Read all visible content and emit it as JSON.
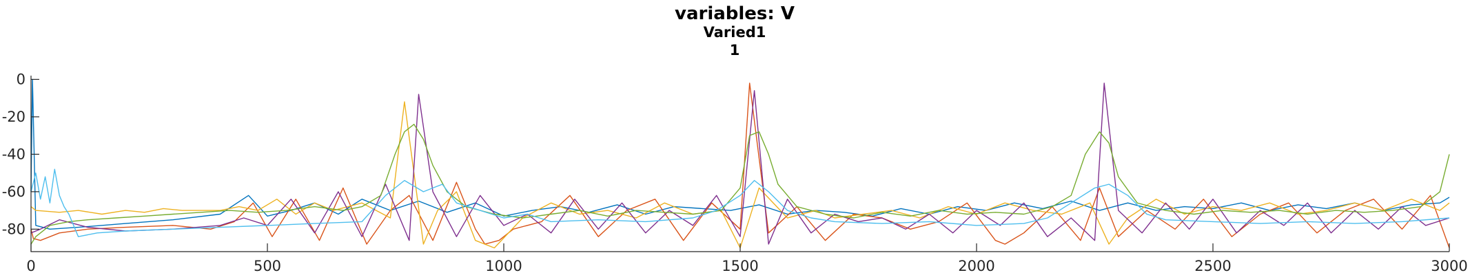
{
  "chart_data": {
    "type": "line",
    "title": "variables: V",
    "subtitle": "Varied1",
    "subtitle2": "1",
    "xlabel": "",
    "ylabel": "",
    "xlim": [
      0,
      3000
    ],
    "ylim": [
      -92,
      2
    ],
    "grid": false,
    "xticks": [
      0,
      500,
      1000,
      1500,
      2000,
      2500,
      3000
    ],
    "yticks": [
      0,
      -20,
      -40,
      -60,
      -80
    ],
    "xtick_labels": [
      "0",
      "500",
      "1000",
      "1500",
      "2000",
      "2500",
      "3000"
    ],
    "ytick_labels": [
      "0",
      "-20",
      "-40",
      "-60",
      "-80"
    ],
    "series": [
      {
        "color": "#0072BD",
        "x": [
          0,
          3,
          10,
          40,
          100,
          200,
          300,
          400,
          460,
          500,
          550,
          600,
          650,
          700,
          760,
          820,
          880,
          940,
          1000,
          1060,
          1120,
          1180,
          1240,
          1300,
          1360,
          1420,
          1480,
          1540,
          1600,
          1660,
          1720,
          1780,
          1840,
          1900,
          1960,
          2020,
          2080,
          2140,
          2200,
          2260,
          2320,
          2380,
          2440,
          2500,
          2560,
          2620,
          2680,
          2740,
          2800,
          2860,
          2920,
          2980,
          3000
        ],
        "y": [
          -60,
          0,
          -78,
          -80,
          -79,
          -77,
          -75,
          -72,
          -62,
          -73,
          -70,
          -66,
          -72,
          -64,
          -70,
          -65,
          -71,
          -66,
          -73,
          -70,
          -68,
          -71,
          -67,
          -72,
          -68,
          -69,
          -70,
          -67,
          -72,
          -70,
          -71,
          -73,
          -69,
          -72,
          -68,
          -70,
          -66,
          -69,
          -65,
          -70,
          -66,
          -70,
          -68,
          -69,
          -66,
          -70,
          -67,
          -69,
          -66,
          -70,
          -67,
          -66,
          -63
        ]
      },
      {
        "color": "#D95319",
        "x": [
          0,
          5,
          20,
          60,
          120,
          200,
          300,
          380,
          430,
          470,
          510,
          560,
          610,
          660,
          710,
          760,
          800,
          850,
          900,
          940,
          960,
          990,
          1020,
          1080,
          1140,
          1200,
          1260,
          1320,
          1380,
          1440,
          1500,
          1520,
          1560,
          1620,
          1680,
          1740,
          1800,
          1860,
          1920,
          1980,
          2040,
          2060,
          2100,
          2160,
          2220,
          2260,
          2300,
          2360,
          2420,
          2480,
          2540,
          2600,
          2660,
          2720,
          2780,
          2840,
          2900,
          2960,
          3000
        ],
        "y": [
          -80,
          -85,
          -86,
          -82,
          -80,
          -79,
          -78,
          -80,
          -76,
          -66,
          -84,
          -64,
          -86,
          -58,
          -88,
          -70,
          -62,
          -86,
          -55,
          -80,
          -88,
          -86,
          -80,
          -76,
          -62,
          -84,
          -70,
          -64,
          -86,
          -66,
          -80,
          -2,
          -82,
          -68,
          -86,
          -72,
          -74,
          -80,
          -76,
          -66,
          -86,
          -88,
          -82,
          -68,
          -86,
          -58,
          -84,
          -70,
          -80,
          -64,
          -84,
          -72,
          -66,
          -82,
          -70,
          -64,
          -80,
          -62,
          -90
        ]
      },
      {
        "color": "#EDB120",
        "x": [
          0,
          10,
          60,
          100,
          150,
          200,
          240,
          280,
          320,
          360,
          400,
          440,
          480,
          520,
          560,
          600,
          640,
          700,
          760,
          790,
          830,
          860,
          900,
          940,
          980,
          1040,
          1100,
          1160,
          1220,
          1280,
          1340,
          1400,
          1460,
          1500,
          1540,
          1600,
          1660,
          1700,
          1760,
          1820,
          1880,
          1940,
          2000,
          2060,
          2120,
          2180,
          2240,
          2280,
          2320,
          2380,
          2440,
          2500,
          2560,
          2620,
          2680,
          2740,
          2800,
          2860,
          2920,
          2980,
          3000
        ],
        "y": [
          -68,
          -70,
          -71,
          -70,
          -72,
          -70,
          -71,
          -69,
          -70,
          -70,
          -70,
          -68,
          -70,
          -64,
          -72,
          -66,
          -70,
          -66,
          -74,
          -12,
          -88,
          -70,
          -60,
          -86,
          -90,
          -74,
          -66,
          -72,
          -70,
          -74,
          -66,
          -72,
          -70,
          -90,
          -58,
          -74,
          -70,
          -74,
          -72,
          -70,
          -74,
          -68,
          -72,
          -66,
          -70,
          -72,
          -66,
          -88,
          -74,
          -64,
          -72,
          -68,
          -70,
          -66,
          -72,
          -70,
          -66,
          -70,
          -64,
          -70,
          -66
        ]
      },
      {
        "color": "#7E2F8E",
        "x": [
          0,
          20,
          60,
          120,
          200,
          300,
          400,
          450,
          500,
          550,
          600,
          650,
          700,
          750,
          800,
          820,
          850,
          900,
          950,
          1000,
          1050,
          1100,
          1150,
          1200,
          1250,
          1300,
          1350,
          1400,
          1450,
          1500,
          1530,
          1560,
          1600,
          1650,
          1700,
          1750,
          1800,
          1850,
          1900,
          1950,
          2000,
          2050,
          2100,
          2150,
          2200,
          2250,
          2270,
          2300,
          2350,
          2400,
          2450,
          2500,
          2550,
          2600,
          2650,
          2700,
          2750,
          2800,
          2850,
          2900,
          2950,
          3000
        ],
        "y": [
          -82,
          -80,
          -75,
          -79,
          -81,
          -80,
          -78,
          -74,
          -78,
          -64,
          -82,
          -60,
          -84,
          -56,
          -86,
          -8,
          -60,
          -84,
          -62,
          -78,
          -72,
          -82,
          -64,
          -80,
          -66,
          -82,
          -70,
          -78,
          -62,
          -84,
          -6,
          -88,
          -64,
          -82,
          -72,
          -76,
          -74,
          -80,
          -72,
          -82,
          -70,
          -78,
          -66,
          -84,
          -74,
          -86,
          -2,
          -70,
          -82,
          -66,
          -80,
          -64,
          -82,
          -70,
          -78,
          -66,
          -82,
          -70,
          -80,
          -68,
          -78,
          -74
        ]
      },
      {
        "color": "#77AC30",
        "x": [
          0,
          10,
          40,
          80,
          120,
          180,
          240,
          300,
          360,
          420,
          480,
          540,
          600,
          660,
          700,
          740,
          770,
          790,
          810,
          830,
          850,
          880,
          920,
          980,
          1040,
          1100,
          1160,
          1220,
          1280,
          1340,
          1400,
          1460,
          1500,
          1520,
          1540,
          1560,
          1580,
          1620,
          1680,
          1740,
          1800,
          1860,
          1920,
          1980,
          2040,
          2100,
          2160,
          2200,
          2230,
          2260,
          2280,
          2300,
          2340,
          2400,
          2460,
          2520,
          2580,
          2640,
          2700,
          2760,
          2820,
          2880,
          2940,
          2980,
          3000
        ],
        "y": [
          -88,
          -84,
          -78,
          -76,
          -75,
          -74,
          -73,
          -72,
          -71,
          -70,
          -71,
          -70,
          -68,
          -70,
          -68,
          -62,
          -40,
          -28,
          -24,
          -32,
          -46,
          -60,
          -68,
          -72,
          -74,
          -72,
          -70,
          -73,
          -70,
          -71,
          -72,
          -70,
          -58,
          -30,
          -28,
          -40,
          -56,
          -68,
          -72,
          -74,
          -71,
          -73,
          -70,
          -72,
          -71,
          -72,
          -68,
          -62,
          -40,
          -28,
          -34,
          -52,
          -66,
          -70,
          -72,
          -70,
          -71,
          -70,
          -72,
          -70,
          -71,
          -70,
          -68,
          -60,
          -40
        ]
      },
      {
        "color": "#4DBEEE",
        "x": [
          0,
          10,
          20,
          30,
          40,
          50,
          60,
          70,
          80,
          100,
          140,
          200,
          300,
          400,
          500,
          600,
          700,
          750,
          790,
          830,
          870,
          900,
          950,
          1000,
          1050,
          1100,
          1200,
          1300,
          1400,
          1450,
          1500,
          1530,
          1560,
          1600,
          1650,
          1700,
          1800,
          1900,
          2000,
          2100,
          2150,
          2200,
          2250,
          2280,
          2320,
          2360,
          2400,
          2500,
          2600,
          2700,
          2800,
          2900,
          3000
        ],
        "y": [
          -60,
          -50,
          -64,
          -52,
          -66,
          -48,
          -62,
          -68,
          -72,
          -84,
          -82,
          -81,
          -80,
          -79,
          -78,
          -77,
          -76,
          -62,
          -54,
          -60,
          -56,
          -66,
          -70,
          -74,
          -72,
          -76,
          -75,
          -76,
          -74,
          -70,
          -62,
          -54,
          -60,
          -70,
          -74,
          -76,
          -77,
          -76,
          -78,
          -77,
          -74,
          -66,
          -58,
          -56,
          -62,
          -72,
          -75,
          -76,
          -77,
          -76,
          -77,
          -76,
          -74
        ]
      }
    ]
  }
}
